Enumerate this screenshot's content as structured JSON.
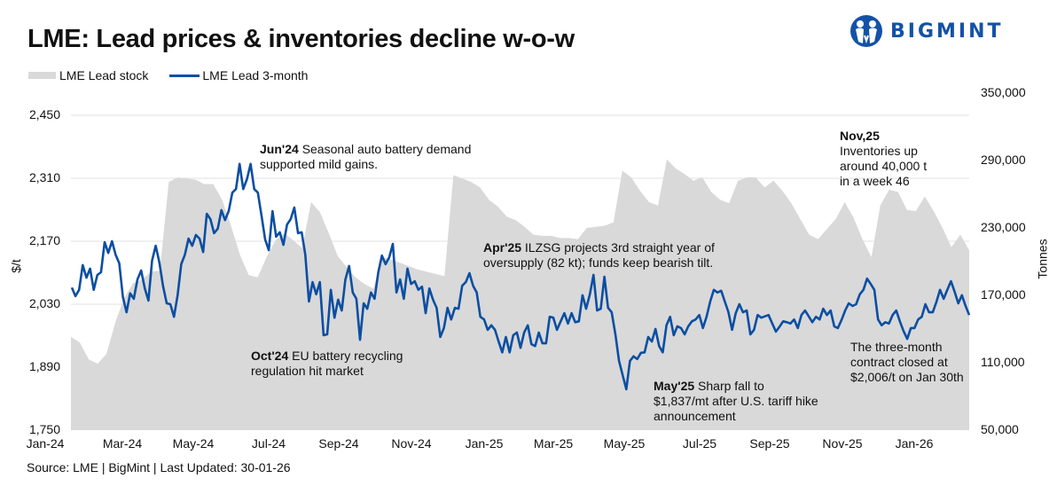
{
  "title": "LME: Lead prices & inventories decline w-o-w",
  "logo": {
    "text": "BIGMINT",
    "color": "#1452a6"
  },
  "legend": {
    "stock": "LME Lead stock",
    "price": "LME Lead 3-month"
  },
  "source": "Source: LME | BigMint | Last Updated: 30-01-26",
  "annotations": {
    "jun": {
      "bold": "Jun'24",
      "lines": [
        "Seasonal auto battery demand",
        "supported mild gains."
      ]
    },
    "oct": {
      "bold": "Oct'24",
      "lines": [
        "EU battery recycling",
        "regulation hit market"
      ]
    },
    "apr": {
      "bold": "Apr'25",
      "lines": [
        "ILZSG projects 3rd straight year of",
        "oversupply (82 kt); funds keep bearish tilt."
      ]
    },
    "may": {
      "bold": "May'25",
      "lines": [
        "Sharp fall to",
        "$1,837/mt after U.S. tariff hike",
        "announcement"
      ]
    },
    "nov": {
      "bold": "Nov,25",
      "lines": [
        "Inventories up",
        "around 40,000 t",
        "in a week 46"
      ]
    },
    "close": {
      "lines": [
        "The three-month",
        "contract closed at",
        "$2,006/t on Jan 30th"
      ]
    }
  },
  "chart_data": {
    "type": "line",
    "title": "LME: Lead prices & inventories decline w-o-w",
    "legend_position": "top-left",
    "grid": true,
    "x_ticks": [
      "Jan-24",
      "Mar-24",
      "May-24",
      "Jul-24",
      "Sep-24",
      "Nov-24",
      "Jan-25",
      "Mar-25",
      "May-25",
      "Jul-25",
      "Sep-25",
      "Nov-25",
      "Jan-26"
    ],
    "y_left": {
      "label": "$/t",
      "range": [
        1750,
        2450
      ],
      "ticks": [
        "2,450",
        "2,310",
        "2,170",
        "2,030",
        "1,890",
        "1,750"
      ]
    },
    "y_right": {
      "label": "Tonnes",
      "range": [
        50000,
        350000
      ],
      "ticks": [
        "350,000",
        "290,000",
        "230,000",
        "170,000",
        "110,000",
        "50,000"
      ]
    },
    "series": [
      {
        "name": "LME Lead stock",
        "type": "area",
        "axis": "right",
        "color": "#d9d9d9",
        "values": [
          133000,
          128000,
          113000,
          109000,
          118000,
          146000,
          168000,
          181000,
          184000,
          191000,
          192000,
          271000,
          275000,
          274000,
          273000,
          269000,
          269000,
          255000,
          232000,
          206000,
          188000,
          186000,
          204000,
          219000,
          225000,
          219000,
          212000,
          253000,
          244000,
          225000,
          205000,
          195000,
          186000,
          180000,
          176000,
          204000,
          202000,
          199000,
          196000,
          193000,
          191000,
          189000,
          187000,
          277000,
          274000,
          271000,
          266000,
          255000,
          249000,
          240000,
          237000,
          231000,
          224000,
          223000,
          223000,
          221000,
          221000,
          220000,
          230000,
          231000,
          232000,
          235000,
          281000,
          275000,
          263000,
          253000,
          250000,
          291000,
          283000,
          278000,
          272000,
          275000,
          262000,
          255000,
          252000,
          272000,
          275000,
          275000,
          266000,
          272000,
          263000,
          252000,
          238000,
          224000,
          220000,
          229000,
          238000,
          253000,
          239000,
          220000,
          204000,
          250000,
          264000,
          262000,
          246000,
          245000,
          258000,
          245000,
          230000,
          213000,
          224000,
          210000
        ]
      },
      {
        "name": "LME Lead 3-month",
        "type": "line",
        "axis": "left",
        "color": "#0b4ea2",
        "values": [
          2067,
          2048,
          2062,
          2117,
          2089,
          2109,
          2062,
          2095,
          2101,
          2168,
          2144,
          2170,
          2140,
          2121,
          2046,
          2012,
          2054,
          2042,
          2085,
          2105,
          2065,
          2038,
          2127,
          2160,
          2123,
          2071,
          2032,
          2030,
          2002,
          2050,
          2119,
          2140,
          2176,
          2160,
          2184,
          2176,
          2146,
          2231,
          2219,
          2188,
          2198,
          2239,
          2217,
          2237,
          2278,
          2286,
          2342,
          2286,
          2308,
          2342,
          2286,
          2278,
          2227,
          2174,
          2150,
          2237,
          2180,
          2190,
          2162,
          2207,
          2219,
          2245,
          2188,
          2190,
          2140,
          2036,
          2079,
          2052,
          2079,
          1961,
          1963,
          2062,
          2000,
          2040,
          2016,
          2085,
          2115,
          2056,
          2042,
          1951,
          2032,
          2020,
          2056,
          2042,
          2101,
          2138,
          2119,
          2134,
          2164,
          2056,
          2085,
          2042,
          2109,
          2075,
          2081,
          2062,
          2069,
          2010,
          2065,
          2040,
          2022,
          1957,
          1977,
          2022,
          1996,
          2022,
          2020,
          2071,
          2079,
          2099,
          2071,
          2056,
          2002,
          1996,
          1973,
          1983,
          1973,
          1947,
          1923,
          1957,
          1923,
          1961,
          1967,
          1933,
          1967,
          1983,
          1941,
          1937,
          1967,
          1943,
          1943,
          2002,
          2000,
          1973,
          1992,
          2010,
          1987,
          2010,
          1990,
          1992,
          2050,
          2020,
          2052,
          2095,
          2016,
          2020,
          2091,
          2022,
          2012,
          1963,
          1904,
          1872,
          1841,
          1904,
          1914,
          1908,
          1922,
          1923,
          1957,
          1947,
          1975,
          1937,
          1923,
          1983,
          2002,
          1961,
          1981,
          1977,
          1963,
          1981,
          1992,
          1996,
          2006,
          1977,
          2002,
          2036,
          2062,
          2056,
          2060,
          2036,
          2012,
          1973,
          2010,
          2030,
          2012,
          2016,
          1963,
          1973,
          2006,
          2000,
          2003,
          2006,
          1987,
          1969,
          1980,
          1992,
          1990,
          1987,
          1996,
          1977,
          2006,
          2016,
          2003,
          1990,
          2002,
          1996,
          2020,
          2006,
          2016,
          1981,
          1977,
          1995,
          2016,
          2032,
          2026,
          2030,
          2052,
          2062,
          2087,
          2075,
          2062,
          1996,
          1983,
          1990,
          1987,
          2006,
          2016,
          1992,
          1970,
          1953,
          1977,
          1977,
          1996,
          2002,
          2030,
          2012,
          2012,
          2035,
          2062,
          2042,
          2062,
          2081,
          2058,
          2032,
          2050,
          2026,
          2006
        ]
      }
    ]
  }
}
